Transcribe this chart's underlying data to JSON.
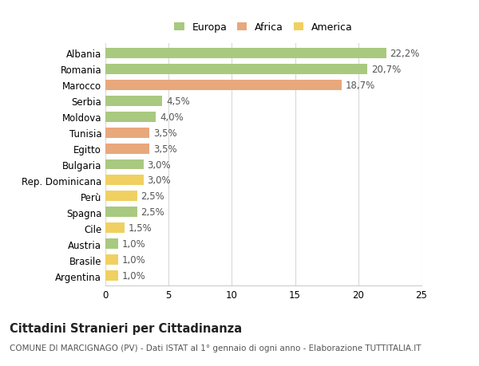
{
  "countries": [
    "Albania",
    "Romania",
    "Marocco",
    "Serbia",
    "Moldova",
    "Tunisia",
    "Egitto",
    "Bulgaria",
    "Rep. Dominicana",
    "Perù",
    "Spagna",
    "Cile",
    "Austria",
    "Brasile",
    "Argentina"
  ],
  "values": [
    22.2,
    20.7,
    18.7,
    4.5,
    4.0,
    3.5,
    3.5,
    3.0,
    3.0,
    2.5,
    2.5,
    1.5,
    1.0,
    1.0,
    1.0
  ],
  "categories": [
    "Europa",
    "Europa",
    "Africa",
    "Europa",
    "Europa",
    "Africa",
    "Africa",
    "Europa",
    "America",
    "America",
    "Europa",
    "America",
    "Europa",
    "America",
    "America"
  ],
  "labels": [
    "22,2%",
    "20,7%",
    "18,7%",
    "4,5%",
    "4,0%",
    "3,5%",
    "3,5%",
    "3,0%",
    "3,0%",
    "2,5%",
    "2,5%",
    "1,5%",
    "1,0%",
    "1,0%",
    "1,0%"
  ],
  "colors": {
    "Europa": "#a8c97f",
    "Africa": "#e8a87c",
    "America": "#f0d060"
  },
  "xlim": [
    0,
    25
  ],
  "xticks": [
    0,
    5,
    10,
    15,
    20,
    25
  ],
  "background_color": "#ffffff",
  "grid_color": "#d8d8d8",
  "title": "Cittadini Stranieri per Cittadinanza",
  "subtitle": "COMUNE DI MARCIGNAGO (PV) - Dati ISTAT al 1° gennaio di ogni anno - Elaborazione TUTTITALIA.IT",
  "bar_height": 0.65,
  "label_fontsize": 8.5,
  "tick_fontsize": 8.5,
  "title_fontsize": 10.5,
  "subtitle_fontsize": 7.5,
  "legend_order": [
    "Europa",
    "Africa",
    "America"
  ]
}
